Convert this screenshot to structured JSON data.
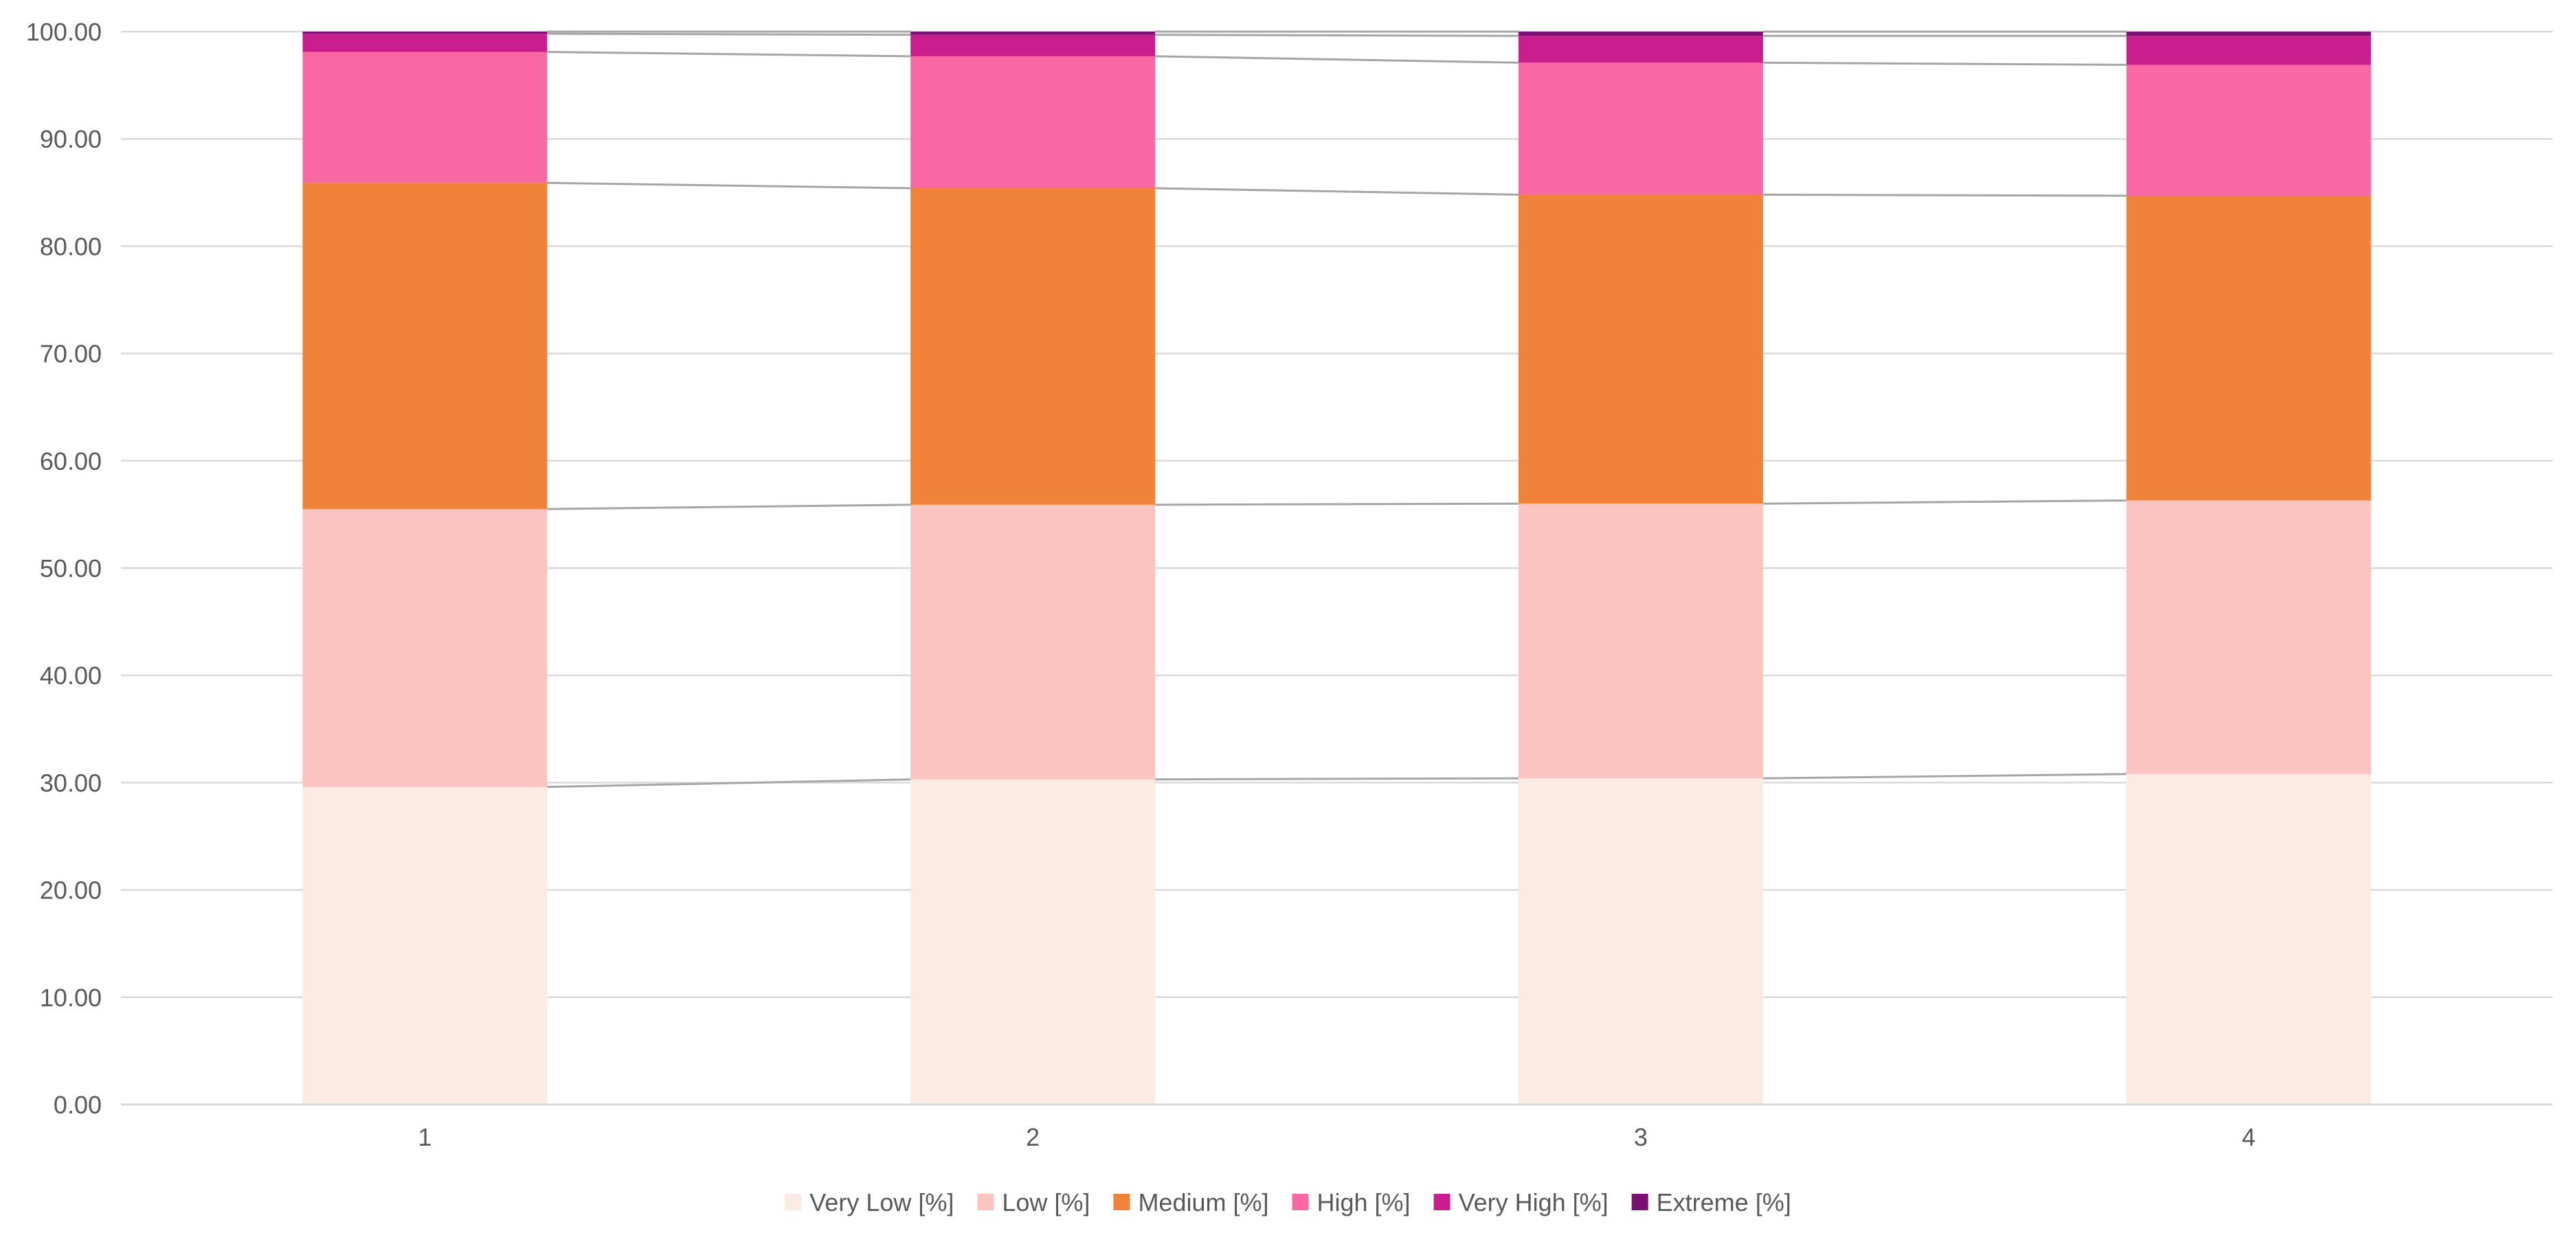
{
  "chart_data": {
    "type": "bar",
    "stacked": true,
    "categories": [
      "1",
      "2",
      "3",
      "4"
    ],
    "series": [
      {
        "name": "Very Low [%]",
        "color": "#FBEBE3",
        "values": [
          29.6,
          30.3,
          30.4,
          30.8
        ]
      },
      {
        "name": "Low [%]",
        "color": "#FBC4C0",
        "values": [
          25.9,
          25.6,
          25.6,
          25.5
        ]
      },
      {
        "name": "Medium [%]",
        "color": "#F0823A",
        "values": [
          30.4,
          29.5,
          28.8,
          28.4
        ]
      },
      {
        "name": "High [%]",
        "color": "#F868A2",
        "values": [
          12.2,
          12.3,
          12.3,
          12.2
        ]
      },
      {
        "name": "Very High [%]",
        "color": "#C81E8E",
        "values": [
          1.7,
          2.0,
          2.5,
          2.7
        ]
      },
      {
        "name": "Extreme [%]",
        "color": "#7B0F74",
        "values": [
          0.2,
          0.3,
          0.4,
          0.4
        ]
      }
    ],
    "y_ticks": [
      "0.00",
      "10.00",
      "20.00",
      "30.00",
      "40.00",
      "50.00",
      "60.00",
      "70.00",
      "80.00",
      "90.00",
      "100.00"
    ],
    "ylim": [
      0,
      100
    ],
    "grid": true,
    "series_lines": true,
    "legend_position": "bottom",
    "title": "",
    "xlabel": "",
    "ylabel": ""
  }
}
